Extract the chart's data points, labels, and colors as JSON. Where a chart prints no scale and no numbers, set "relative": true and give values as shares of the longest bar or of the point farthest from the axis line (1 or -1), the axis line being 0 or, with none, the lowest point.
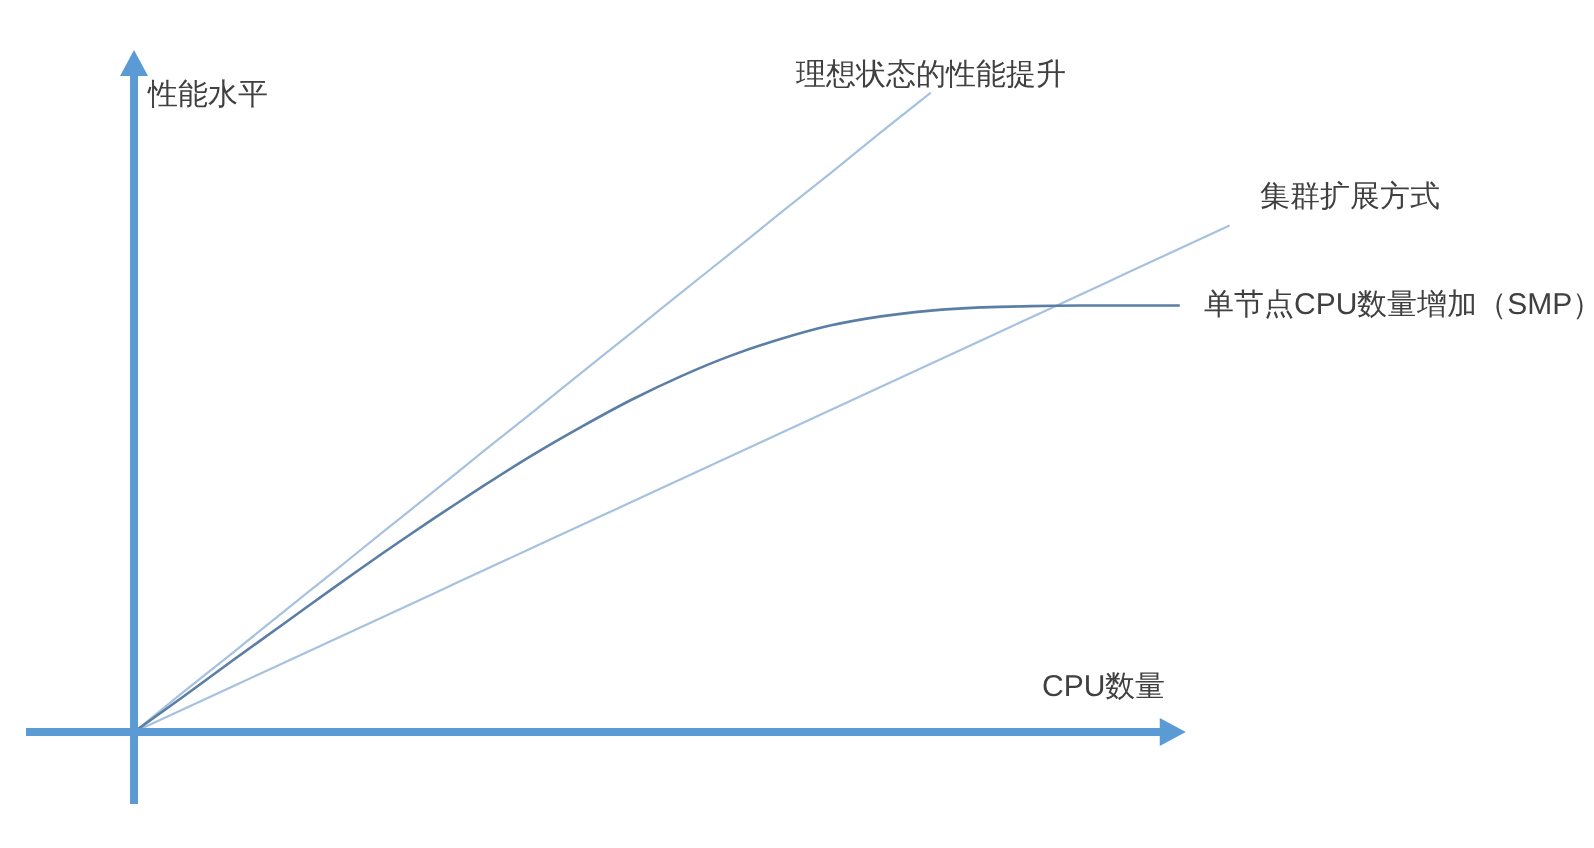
{
  "chart_data": {
    "type": "line",
    "relative": true,
    "xlabel": "CPU数量",
    "ylabel": "性能水平",
    "line_style": "solid",
    "categories": [
      null,
      null,
      null,
      null,
      null,
      null,
      null,
      null,
      null,
      null,
      null,
      null,
      null,
      null,
      null,
      null,
      null,
      null,
      null,
      null,
      null,
      null,
      null
    ],
    "series": [
      {
        "name": "理想状态的性能提升",
        "color": "#a6c2df",
        "values": [
          0,
          0.063,
          0.125,
          0.188,
          0.25,
          0.313,
          0.375,
          0.438,
          0.5,
          0.563,
          0.625,
          0.688,
          0.75,
          0.813,
          0.875,
          0.938,
          1,
          null,
          null,
          null,
          null,
          null,
          null
        ]
      },
      {
        "name": "集群扩展方式",
        "color": "#a6c2df",
        "values": [
          0,
          0.036,
          0.072,
          0.108,
          0.144,
          0.18,
          0.216,
          0.252,
          0.288,
          0.324,
          0.36,
          0.396,
          0.432,
          0.468,
          0.504,
          0.54,
          0.576,
          0.612,
          0.648,
          0.684,
          0.72,
          0.756,
          0.792
        ]
      },
      {
        "name": "单节点CPU数量增加（SMP）",
        "color": "#5b7ea6",
        "values": [
          0,
          0.056,
          0.113,
          0.169,
          0.225,
          0.28,
          0.333,
          0.384,
          0.433,
          0.478,
          0.52,
          0.557,
          0.589,
          0.615,
          0.636,
          0.65,
          0.659,
          0.664,
          0.666,
          0.667,
          0.667,
          0.667,
          null
        ]
      }
    ]
  }
}
